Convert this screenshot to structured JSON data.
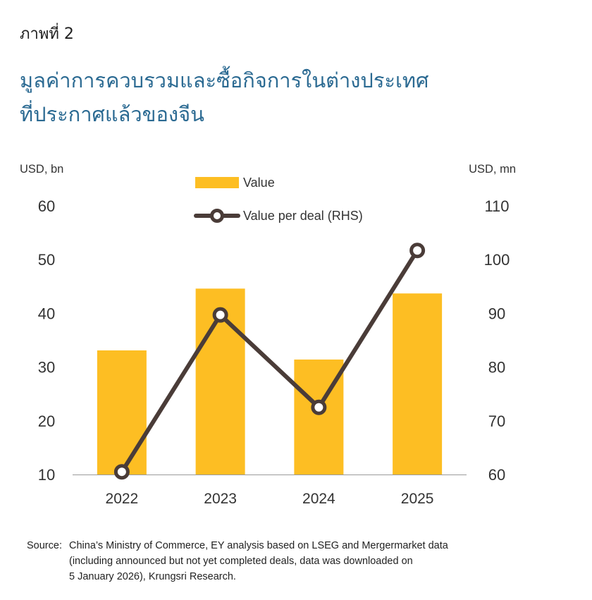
{
  "figure_label": "ภาพที่ 2",
  "title_lines": [
    "มูลค่าการควบรวมและซื้อกิจการในต่างประเทศ",
    "ที่ประกาศแล้วของจีน"
  ],
  "source": {
    "label": "Source:",
    "lines": [
      "China’s Ministry of Commerce, EY analysis based on LSEG and Mergermarket data",
      "(including announced but not yet completed deals, data was downloaded on",
      "5 January 2026), Krungsri Research."
    ]
  },
  "colors": {
    "bar": "#fdbe23",
    "line": "#4a3c38",
    "marker_fill": "#ffffff",
    "title": "#2b6a92",
    "axis": "#333333"
  },
  "chart_data": {
    "type": "bar",
    "categories": [
      "2022",
      "2023",
      "2024",
      "2025"
    ],
    "series": [
      {
        "name": "Value",
        "type": "bar",
        "axis": "left",
        "values": [
          33.1,
          44.6,
          31.4,
          43.7
        ]
      },
      {
        "name": "Value per deal (RHS)",
        "type": "line",
        "axis": "right",
        "values": [
          60.5,
          89.7,
          72.5,
          101.7
        ]
      }
    ],
    "ylabel_left": "USD, bn",
    "ylabel_right": "USD, mn",
    "ylim_left": [
      10,
      60
    ],
    "ylim_right": [
      60,
      110
    ],
    "yticks_left": [
      10,
      20,
      30,
      40,
      50,
      60
    ],
    "yticks_right": [
      60,
      70,
      80,
      90,
      100,
      110
    ],
    "grid": false,
    "legend_position": "top-center"
  }
}
